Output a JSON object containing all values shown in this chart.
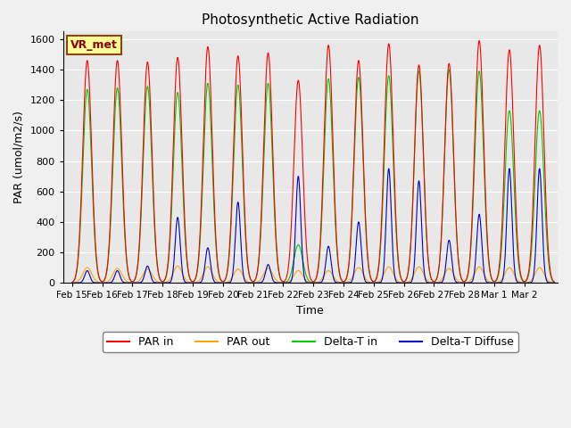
{
  "title": "Photosynthetic Active Radiation",
  "ylabel": "PAR (umol/m2/s)",
  "xlabel": "Time",
  "station_label": "VR_met",
  "ylim": [
    0,
    1650
  ],
  "background_color": "#e8e8e8",
  "legend_entries": [
    "PAR in",
    "PAR out",
    "Delta-T in",
    "Delta-T Diffuse"
  ],
  "legend_colors": [
    "#ff0000",
    "#ffa500",
    "#00cc00",
    "#0000cc"
  ],
  "x_tick_labels": [
    "Feb 15",
    "Feb 16",
    "Feb 17",
    "Feb 18",
    "Feb 19",
    "Feb 20",
    "Feb 21",
    "Feb 22",
    "Feb 23",
    "Feb 24",
    "Feb 25",
    "Feb 26",
    "Feb 27",
    "Feb 28",
    "Mar 1",
    "Mar 2"
  ],
  "n_days": 16,
  "daily_peaks_par_in": [
    1460,
    1460,
    1450,
    1480,
    1550,
    1490,
    1510,
    1330,
    1560,
    1460,
    1570,
    1430,
    1440,
    1590,
    1530,
    1560
  ],
  "daily_peaks_par_out": [
    100,
    95,
    90,
    110,
    105,
    90,
    95,
    80,
    80,
    100,
    105,
    105,
    95,
    105,
    100,
    100
  ],
  "daily_peaks_delta_t_in": [
    1270,
    1280,
    1290,
    1250,
    1310,
    1300,
    1310,
    250,
    1340,
    1350,
    1360,
    1390,
    1400,
    1390,
    1130,
    1130
  ],
  "daily_peaks_delta_t_diffuse": [
    80,
    80,
    110,
    430,
    230,
    530,
    120,
    700,
    240,
    400,
    750,
    670,
    280,
    450,
    750,
    750
  ],
  "par_in_color": "#ff0000",
  "par_out_color": "#ffa500",
  "delta_t_in_color": "#00cc00",
  "delta_t_diffuse_color": "#0000cc",
  "yticks": [
    0,
    200,
    400,
    600,
    800,
    1000,
    1200,
    1400,
    1600
  ]
}
